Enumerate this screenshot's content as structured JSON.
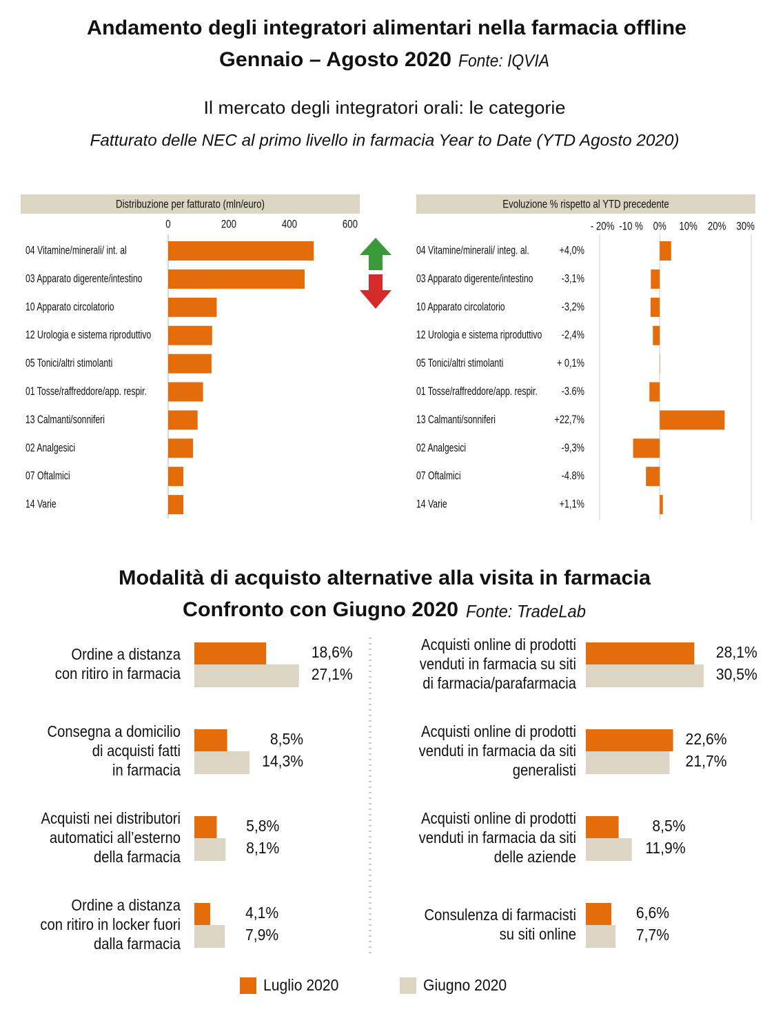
{
  "header": {
    "title": [
      "Andamento degli integratori alimentari nella farmacia offline",
      "Gennaio – Agosto 2020"
    ],
    "source": "Fonte: IQVIA",
    "subtitle": "Il mercato degli integratori orali: le categorie",
    "description": "Fatturato delle NEC al primo livello in farmacia Year to Date (YTD Agosto 2020)"
  },
  "chart_data": [
    {
      "type": "bar",
      "orientation": "horizontal",
      "title": "Distribuzione per fatturato (mln/euro)",
      "color": "#e46c0a",
      "categories": [
        "04 Vitamine/minerali/ int. al",
        "03 Apparato digerente/intestino",
        "10 Apparato circolatorio",
        "12 Urologia e sistema riproduttivo",
        "05 Tonici/altri stimolanti",
        "01 Tosse/raffreddore/app. respir.",
        "13 Calmanti/sonniferi",
        "02 Analgesici",
        "07 Oftalmici",
        "14 Varie"
      ],
      "values": [
        480,
        450,
        160,
        145,
        143,
        115,
        97,
        82,
        50,
        50
      ],
      "xlim": [
        0,
        600
      ],
      "xticks": [
        0,
        200,
        400,
        600
      ]
    },
    {
      "type": "bar",
      "orientation": "horizontal",
      "title": "Evoluzione % rispetto al YTD precedente",
      "color": "#e46c0a",
      "categories": [
        "04 Vitamine/minerali/ integ. al.",
        "03 Apparato digerente/intestino",
        "10 Apparato circolatorio",
        "12 Urologia e sistema riproduttivo",
        "05 Tonici/altri stimolanti",
        "01 Tosse/raffreddore/app. respir.",
        "13 Calmanti/sonniferi",
        "02 Analgesici",
        "07 Oftalmici",
        "14 Varie"
      ],
      "values": [
        4.0,
        -3.1,
        -3.2,
        -2.4,
        0.1,
        -3.6,
        22.7,
        -9.3,
        -4.8,
        1.1
      ],
      "value_labels": [
        "+4,0%",
        "-3,1%",
        "-3,2%",
        "-2,4%",
        "+ 0,1%",
        "-3.6%",
        "+22,7%",
        "-9,3%",
        "-4.8%",
        "+1,1%"
      ],
      "xlim": [
        -21,
        32
      ],
      "xticks": [
        {
          "value": -20,
          "label": "- 20%"
        },
        {
          "value": -10,
          "label": "-10 %"
        },
        {
          "value": 0,
          "label": "0%"
        },
        {
          "value": 10,
          "label": "10%"
        },
        {
          "value": 20,
          "label": "20%"
        },
        {
          "value": 30,
          "label": "30%"
        }
      ]
    },
    {
      "type": "bar",
      "orientation": "horizontal",
      "title": [
        "Modalità di acquisto alternative alla visita in farmacia",
        "Confronto con Giugno 2020"
      ],
      "source": "Fonte: TradeLab",
      "categories": [
        [
          "Ordine a distanza",
          "con ritiro in farmacia"
        ],
        [
          "Consegna a domicilio",
          "di acquisti fatti",
          "in farmacia"
        ],
        [
          "Acquisti nei distributori",
          "automatici all’esterno",
          "della farmacia"
        ],
        [
          "Ordine a distanza",
          "con ritiro in locker fuori",
          "dalla farmacia"
        ],
        [
          "Acquisti online di prodotti",
          "venduti in farmacia su siti",
          "di farmacia/parafarmacia"
        ],
        [
          "Acquisti online di prodotti",
          "venduti in farmacia da siti",
          "generalisti"
        ],
        [
          "Acquisti online di prodotti",
          "venduti in farmacia da siti",
          "delle aziende"
        ],
        [
          "Consulenza di farmacisti",
          "su siti online"
        ]
      ],
      "series": [
        {
          "name": "Luglio 2020",
          "color": "#e46c0a",
          "values": [
            18.6,
            8.5,
            5.8,
            4.1,
            28.1,
            22.6,
            8.5,
            6.6
          ],
          "value_labels": [
            "18,6%",
            "8,5%",
            "5,8%",
            "4,1%",
            "28,1%",
            "22,6%",
            "8,5%",
            "6,6%"
          ]
        },
        {
          "name": "Giugno 2020",
          "color": "#ddd5c3",
          "values": [
            27.1,
            14.3,
            8.1,
            7.9,
            30.5,
            21.7,
            11.9,
            7.7
          ],
          "value_labels": [
            "27,1%",
            "14,3%",
            "8,1%",
            "7,9%",
            "30,5%",
            "21,7%",
            "11,9%",
            "7,7%"
          ]
        }
      ]
    }
  ]
}
